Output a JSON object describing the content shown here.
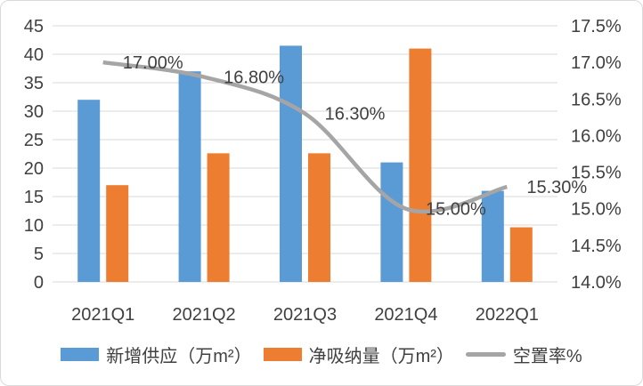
{
  "chart_data": {
    "type": "combo",
    "title": "",
    "categories": [
      "2021Q1",
      "2021Q2",
      "2021Q3",
      "2021Q4",
      "2022Q1"
    ],
    "series": [
      {
        "name": "新增供应（万m²）",
        "key": "new-supply",
        "chart_type": "bar",
        "axis": "left",
        "color": "#5B9BD5",
        "values": [
          32,
          37,
          41.5,
          21,
          16
        ]
      },
      {
        "name": "净吸纳量（万m²）",
        "key": "net-absorption",
        "chart_type": "bar",
        "axis": "left",
        "color": "#ED7D31",
        "values": [
          17,
          22.6,
          22.6,
          41,
          9.6
        ]
      },
      {
        "name": "空置率%",
        "key": "vacancy-rate",
        "chart_type": "line",
        "axis": "right",
        "color": "#A5A5A5",
        "values": [
          17.0,
          16.8,
          16.3,
          15.0,
          15.3
        ],
        "point_labels": [
          "17.00%",
          "16.80%",
          "16.30%",
          "15.00%",
          "15.30%"
        ]
      }
    ],
    "left_axis": {
      "min": 0,
      "max": 45,
      "step": 5,
      "tick_labels": [
        "0",
        "5",
        "10",
        "15",
        "20",
        "25",
        "30",
        "35",
        "40",
        "45"
      ]
    },
    "right_axis": {
      "min": 14.0,
      "max": 17.5,
      "step": 0.5,
      "tick_labels": [
        "14.0%",
        "14.5%",
        "15.0%",
        "15.5%",
        "16.0%",
        "16.5%",
        "17.0%",
        "17.5%"
      ]
    },
    "grid": true,
    "legend_position": "bottom"
  },
  "styles": {
    "text_color": "#404040",
    "grid_color": "#D9D9D9",
    "border_color": "#D9D9D9",
    "background": "#FFFFFF"
  }
}
